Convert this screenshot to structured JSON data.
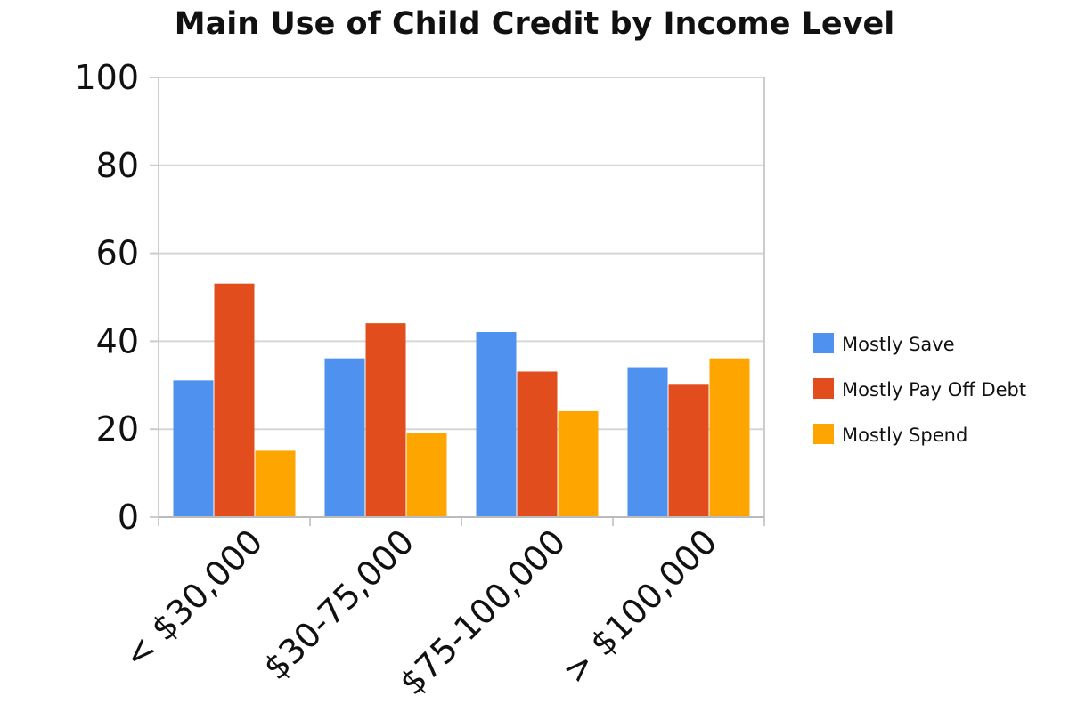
{
  "chart_data": {
    "type": "bar",
    "title": "Main Use of Child Credit by Income Level",
    "xlabel": "",
    "ylabel": "",
    "ylim": [
      0,
      100
    ],
    "yticks": [
      0,
      20,
      40,
      60,
      80,
      100
    ],
    "grid": true,
    "legend_position": "right",
    "categories": [
      "< $30,000",
      "$30-75,000",
      "$75-100,000",
      "> $100,000"
    ],
    "series": [
      {
        "name": "Mostly Save",
        "color": "#4f91ee",
        "values": [
          31,
          36,
          42,
          34
        ]
      },
      {
        "name": "Mostly Pay Off Debt",
        "color": "#e24d1e",
        "values": [
          53,
          44,
          33,
          30
        ]
      },
      {
        "name": "Mostly Spend",
        "color": "#fea500",
        "values": [
          15,
          19,
          24,
          36
        ]
      }
    ]
  }
}
